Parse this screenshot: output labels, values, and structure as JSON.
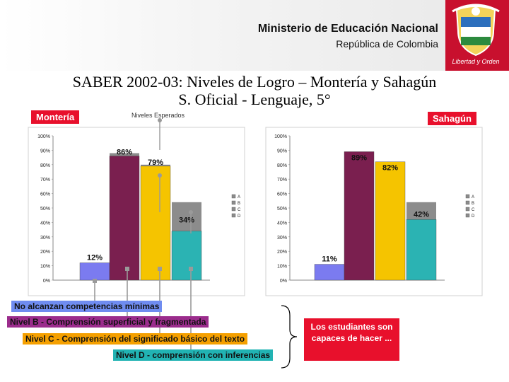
{
  "header": {
    "ministry": "Ministerio de Educación Nacional",
    "republic": "República de Colombia",
    "seal_text": "Libertad y Orden"
  },
  "title_line1": "SABER 2002-03: Niveles de Logro – Montería y Sahagún",
  "title_line2": "S. Oficial - Lenguaje, 5°",
  "left_city": "Montería",
  "right_city": "Sahagún",
  "niveles_esperados": "Niveles Esperados",
  "colors": {
    "A": "#7b7bf0",
    "B": "#7a1f4f",
    "C": "#f5c400",
    "D": "#2bb3b3",
    "grey": "#8c8c8c",
    "red": "#e8102c"
  },
  "level_labels": [
    {
      "text": "No alcanzan competencias mínimas",
      "color": "#6f8cf0"
    },
    {
      "text": "Nivel B - Comprensión superficial y fragmentada",
      "color": "#9b2c8c"
    },
    {
      "text": "Nivel C - Comprensión del significado básico del texto",
      "color": "#f5a000"
    },
    {
      "text": "Nivel D - comprensión con inferencias",
      "color": "#21b3b3"
    }
  ],
  "conclusion": "Los estudiantes son capaces de hacer ...",
  "chart_data": [
    {
      "type": "bar",
      "title": "Montería",
      "categories": [
        "A",
        "B",
        "C",
        "D"
      ],
      "values": [
        12,
        86,
        79,
        34
      ],
      "value_labels": [
        "12%",
        "86%",
        "79%",
        "34%"
      ],
      "expected": [
        0,
        88,
        80,
        54
      ],
      "yticks": [
        "0%",
        "10%",
        "20%",
        "30%",
        "40%",
        "50%",
        "60%",
        "70%",
        "80%",
        "90%",
        "100%"
      ],
      "ylim": [
        0,
        100
      ],
      "legend": [
        "A",
        "B",
        "C",
        "D"
      ],
      "legend_position": "right",
      "grid": false
    },
    {
      "type": "bar",
      "title": "Sahagún",
      "categories": [
        "A",
        "B",
        "C",
        "D"
      ],
      "values": [
        11,
        89,
        82,
        42
      ],
      "value_labels": [
        "11%",
        "89%",
        "82%",
        "42%"
      ],
      "expected": [
        0,
        88,
        80,
        54
      ],
      "yticks": [
        "0%",
        "10%",
        "20%",
        "30%",
        "40%",
        "50%",
        "60%",
        "70%",
        "80%",
        "90%",
        "100%"
      ],
      "ylim": [
        0,
        100
      ],
      "legend": [
        "A",
        "B",
        "C",
        "D"
      ],
      "legend_position": "right",
      "grid": false
    }
  ]
}
